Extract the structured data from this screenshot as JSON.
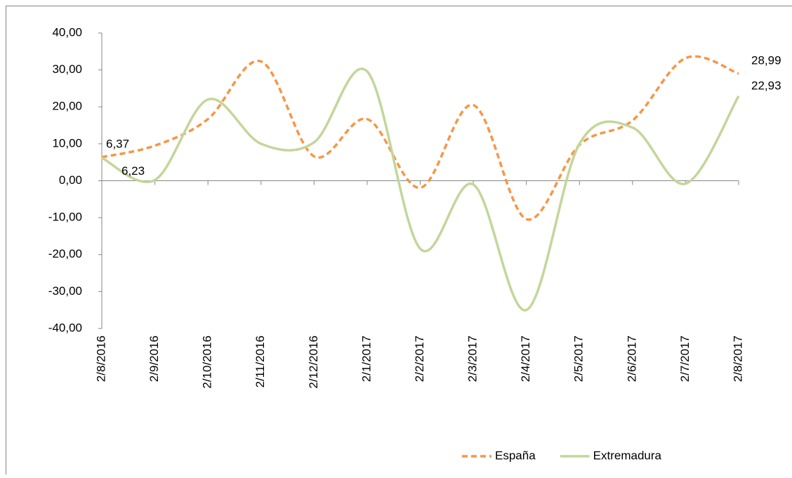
{
  "chart_data": {
    "type": "line",
    "categories": [
      "2/8/2016",
      "2/9/2016",
      "2/10/2016",
      "2/11/2016",
      "2/12/2016",
      "2/1/2017",
      "2/2/2017",
      "2/3/2017",
      "2/4/2017",
      "2/5/2017",
      "2/6/2017",
      "2/7/2017",
      "2/8/2017"
    ],
    "series": [
      {
        "name": "España",
        "color": "#f79646",
        "style": "dashed",
        "values": [
          6.37,
          9.5,
          16.7,
          32.3,
          6.6,
          16.7,
          -1.9,
          20.5,
          -10.4,
          9.7,
          16.3,
          33.2,
          28.99
        ],
        "value_labels": [
          "6,37",
          null,
          null,
          null,
          null,
          null,
          null,
          null,
          null,
          null,
          null,
          null,
          "28,99"
        ]
      },
      {
        "name": "Extremadura",
        "color": "#c3d69b",
        "style": "solid",
        "values": [
          6.23,
          0.2,
          22,
          10,
          10.4,
          29.6,
          -18.4,
          -1,
          -35,
          10,
          14.4,
          -0.8,
          22.93
        ],
        "value_labels": [
          "6,23",
          null,
          null,
          null,
          null,
          null,
          null,
          null,
          null,
          null,
          null,
          null,
          "22,93"
        ]
      }
    ],
    "ylim": [
      -40,
      40
    ],
    "yticks": [
      {
        "value": -40,
        "label": "-40,00"
      },
      {
        "value": -30,
        "label": "-30,00"
      },
      {
        "value": -20,
        "label": "-20,00"
      },
      {
        "value": -10,
        "label": "-10,00"
      },
      {
        "value": 0,
        "label": "0,00"
      },
      {
        "value": 10,
        "label": "10,00"
      },
      {
        "value": 20,
        "label": "20,00"
      },
      {
        "value": 30,
        "label": "30,00"
      },
      {
        "value": 40,
        "label": "40,00"
      }
    ],
    "smooth": true,
    "legend": "bottom-right"
  }
}
